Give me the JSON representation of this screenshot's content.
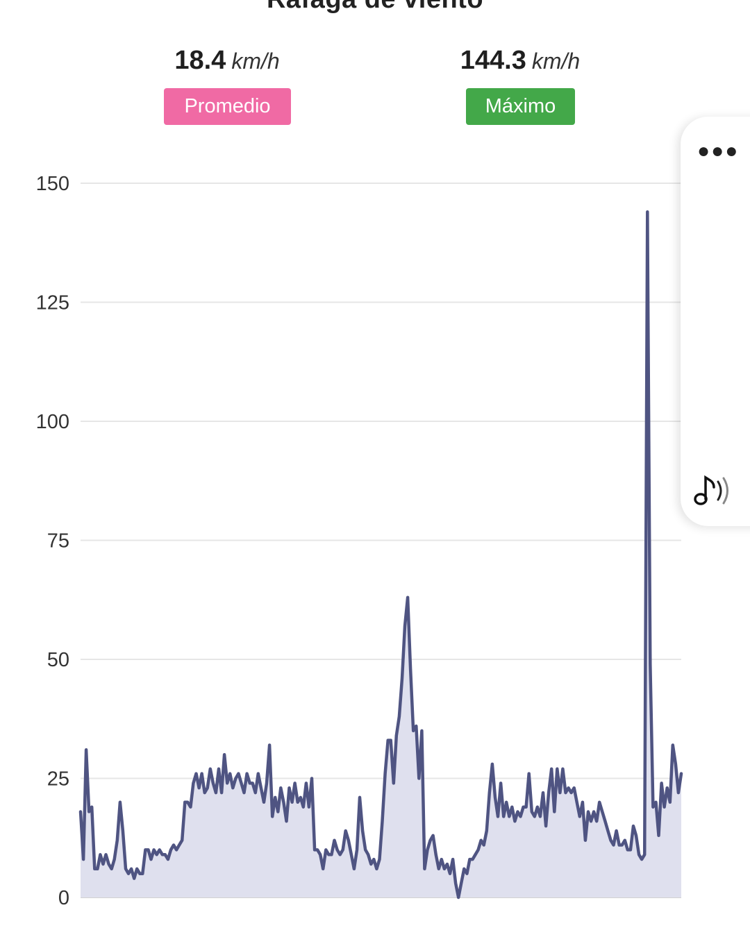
{
  "title": "Ráfaga de viento",
  "stats": {
    "average": {
      "value": "18.4",
      "unit": "km/h",
      "label": "Promedio",
      "color": "#f06aa4"
    },
    "maximum": {
      "value": "144.3",
      "unit": "km/h",
      "label": "Máximo",
      "color": "#43a849"
    }
  },
  "side_panel": {
    "icons": [
      "more-options-icon",
      "audio-music-icon"
    ]
  },
  "chart_data": {
    "type": "area",
    "title": "Ráfaga de viento",
    "xlabel": "",
    "ylabel": "",
    "ylim": [
      0,
      150
    ],
    "yticks": [
      "0",
      "25",
      "50",
      "75",
      "100",
      "125",
      "150"
    ],
    "grid": true,
    "line_color": "#4f5482",
    "fill_color": "#dfe0ee",
    "series": [
      {
        "values": [
          18,
          8,
          31,
          18,
          19,
          6,
          6,
          9,
          7,
          9,
          7,
          6,
          8,
          12,
          20,
          14,
          6,
          5,
          6,
          4,
          6,
          5,
          5,
          10,
          10,
          8,
          10,
          9,
          10,
          9,
          9,
          8,
          10,
          11,
          10,
          11,
          12,
          20,
          20,
          19,
          24,
          26,
          23,
          26,
          22,
          23,
          27,
          24,
          22,
          27,
          22,
          30,
          24,
          26,
          23,
          25,
          26,
          24,
          22,
          26,
          24,
          24,
          22,
          26,
          23,
          20,
          24,
          32,
          17,
          21,
          18,
          23,
          20,
          16,
          23,
          20,
          24,
          20,
          21,
          19,
          24,
          19,
          25,
          10,
          10,
          9,
          6,
          10,
          9,
          9,
          12,
          10,
          9,
          10,
          14,
          12,
          9,
          6,
          10,
          21,
          14,
          10,
          9,
          7,
          8,
          6,
          8,
          16,
          26,
          33,
          33,
          24,
          34,
          38,
          46,
          57,
          63,
          48,
          35,
          36,
          25,
          35,
          6,
          10,
          12,
          13,
          9,
          6,
          8,
          6,
          7,
          5,
          8,
          3,
          0,
          3,
          6,
          5,
          8,
          8,
          9,
          10,
          12,
          11,
          14,
          22,
          28,
          21,
          17,
          24,
          17,
          20,
          17,
          19,
          16,
          18,
          17,
          19,
          19,
          26,
          18,
          17,
          19,
          17,
          22,
          15,
          22,
          27,
          18,
          27,
          22,
          27,
          22,
          23,
          22,
          23,
          20,
          17,
          20,
          12,
          18,
          16,
          18,
          16,
          20,
          18,
          16,
          14,
          12,
          11,
          14,
          11,
          11,
          12,
          10,
          10,
          15,
          13,
          9,
          8,
          9,
          144,
          49,
          19,
          20,
          13,
          24,
          19,
          23,
          20,
          32,
          28,
          22,
          26
        ]
      }
    ]
  }
}
